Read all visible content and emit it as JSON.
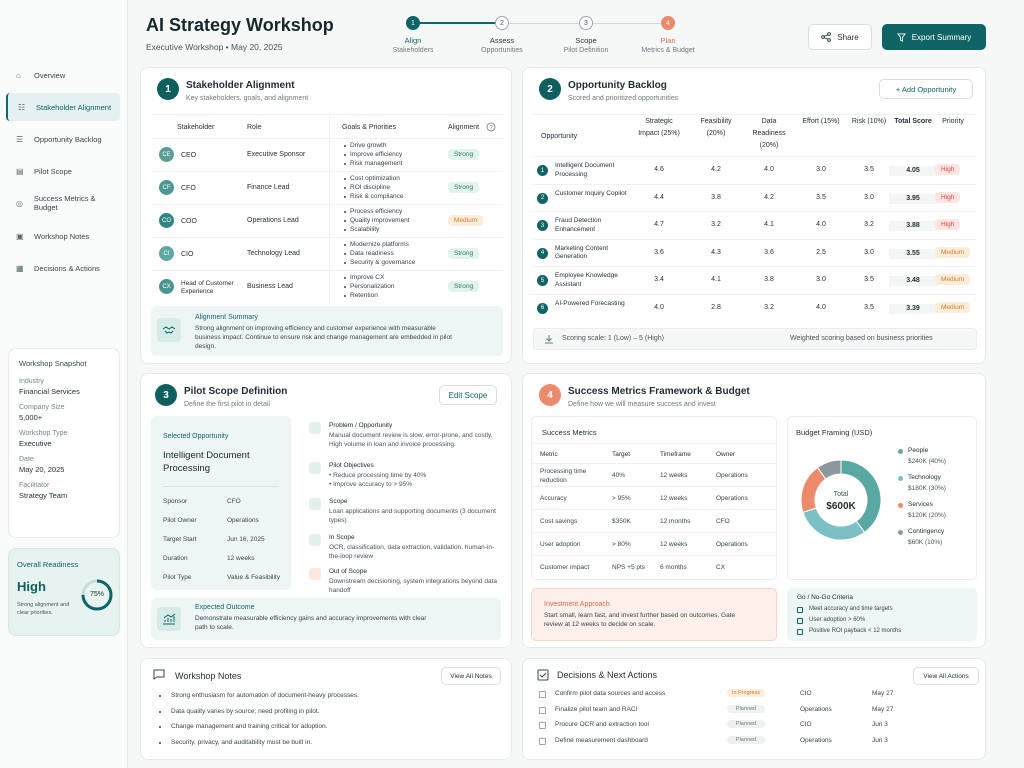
{
  "header": {
    "title": "AI Strategy Workshop",
    "subtitle": "Executive Workshop • May 20, 2025",
    "share": "Share",
    "export": "Export Summary"
  },
  "steps": [
    {
      "n": "1",
      "label": "Align",
      "sub": "Stakeholders"
    },
    {
      "n": "2",
      "label": "Assess",
      "sub": "Opportunities"
    },
    {
      "n": "3",
      "label": "Scope",
      "sub": "Pilot Definition"
    },
    {
      "n": "4",
      "label": "Plan",
      "sub": "Metrics & Budget"
    }
  ],
  "sidebar": {
    "items": [
      "Overview",
      "Stakeholder Alignment",
      "Opportunity Backlog",
      "Pilot Scope",
      "Success Metrics & Budget",
      "Workshop Notes",
      "Decisions & Actions"
    ],
    "snapshot": {
      "title": "Workshop Snapshot",
      "fields": [
        [
          "Industry",
          "Financial Services"
        ],
        [
          "Company Size",
          "5,000+"
        ],
        [
          "Workshop Type",
          "Executive"
        ],
        [
          "Date",
          "May 20, 2025"
        ],
        [
          "Facilitator",
          "Strategy Team"
        ]
      ]
    },
    "readiness": {
      "title": "Overall Readiness",
      "level": "High",
      "note": "Strong alignment and clear priorities.",
      "percent": "75%",
      "fraction": 0.75
    }
  },
  "stake": {
    "n": "1",
    "title": "Stakeholder Alignment",
    "sub": "Key stakeholders, goals, and alignment",
    "cols": [
      "Stakeholder",
      "Role",
      "Goals & Priorities",
      "Alignment"
    ],
    "rows": [
      {
        "ab": "CE",
        "name": "CEO",
        "role": "Executive Sponsor",
        "goals": [
          "Drive growth",
          "Improve efficiency",
          "Risk management"
        ],
        "align": "Strong",
        "cls": "strong",
        "color": "#5b9d96"
      },
      {
        "ab": "CF",
        "name": "CFO",
        "role": "Finance Lead",
        "goals": [
          "Cost optimization",
          "ROI discipline",
          "Risk & compliance"
        ],
        "align": "Strong",
        "cls": "strong",
        "color": "#4d9894"
      },
      {
        "ab": "CO",
        "name": "COO",
        "role": "Operations Lead",
        "goals": [
          "Process efficiency",
          "Quality improvement",
          "Scalability"
        ],
        "align": "Medium",
        "cls": "medium",
        "color": "#2f8682"
      },
      {
        "ab": "CI",
        "name": "CIO",
        "role": "Technology Lead",
        "goals": [
          "Modernize platforms",
          "Data readiness",
          "Security & governance"
        ],
        "align": "Strong",
        "cls": "strong",
        "color": "#5ea8a3"
      },
      {
        "ab": "CX",
        "name": "Head of Customer Experience",
        "role": "Business Lead",
        "goals": [
          "Improve CX",
          "Personalization",
          "Retention"
        ],
        "align": "Strong",
        "cls": "strong",
        "color": "#49958f"
      }
    ],
    "summary_title": "Alignment Summary",
    "summary_text": "Strong alignment on improving efficiency and customer experience with measurable business impact. Continue to ensure risk and change management are embedded in pilot design."
  },
  "opp": {
    "n": "2",
    "title": "Opportunity Backlog",
    "sub": "Scored and prioritized opportunities",
    "add": "+ Add Opportunity",
    "cols": [
      "Opportunity",
      "Strategic Impact (25%)",
      "Feasibility (20%)",
      "Data Readiness (20%)",
      "Effort (15%)",
      "Risk (10%)",
      "Total Score",
      "Priority"
    ],
    "rows": [
      {
        "n": "1",
        "name": "Intelligent Document Processing",
        "v": [
          "4.6",
          "4.2",
          "4.0",
          "3.0",
          "3.5"
        ],
        "total": "4.05",
        "pri": "High",
        "cls": "high"
      },
      {
        "n": "2",
        "name": "Customer Inquiry Copilot",
        "v": [
          "4.4",
          "3.8",
          "4.2",
          "3.5",
          "3.0"
        ],
        "total": "3.95",
        "pri": "High",
        "cls": "high"
      },
      {
        "n": "3",
        "name": "Fraud Detection Enhancement",
        "v": [
          "4.7",
          "3.2",
          "4.1",
          "4.0",
          "3.2"
        ],
        "total": "3.88",
        "pri": "High",
        "cls": "high"
      },
      {
        "n": "4",
        "name": "Marketing Content Generation",
        "v": [
          "3.6",
          "4.3",
          "3.6",
          "2.5",
          "3.0"
        ],
        "total": "3.55",
        "pri": "Medium",
        "cls": "medium"
      },
      {
        "n": "5",
        "name": "Employee Knowledge Assistant",
        "v": [
          "3.4",
          "4.1",
          "3.8",
          "3.0",
          "3.5"
        ],
        "total": "3.48",
        "pri": "Medium",
        "cls": "medium"
      },
      {
        "n": "6",
        "name": "AI-Powered Forecasting",
        "v": [
          "4.0",
          "2.8",
          "3.2",
          "4.0",
          "3.5"
        ],
        "total": "3.39",
        "pri": "Medium",
        "cls": "medium"
      }
    ],
    "scale": "Scoring scale: 1 (Low) – 5 (High)",
    "weighted": "Weighted scoring based on business priorities"
  },
  "pilot": {
    "n": "3",
    "title": "Pilot Scope Definition",
    "sub": "Define the first pilot in detail",
    "edit": "Edit Scope",
    "sel_label": "Selected Opportunity",
    "sel_name": "Intelligent Document Processing",
    "fields": [
      [
        "Sponsor",
        "CFO"
      ],
      [
        "Pilot Owner",
        "Operations"
      ],
      [
        "Target Start",
        "Jun 16, 2025"
      ],
      [
        "Duration",
        "12 weeks"
      ],
      [
        "Pilot Type",
        "Value & Feasibility"
      ]
    ],
    "items": [
      {
        "t": "Problem / Opportunity",
        "d": "Manual document review is slow, error-prone, and costly. High volume in loan and invoice processing."
      },
      {
        "t": "Pilot Objectives",
        "d": "• Reduce processing time by 40%\n• Improve accuracy to > 95%"
      },
      {
        "t": "Scope",
        "d": "Loan applications and supporting documents (3 document types)"
      },
      {
        "t": "In Scope",
        "d": "OCR, classification, data extraction, validation, human-in-the-loop review"
      },
      {
        "t": "Out of Scope",
        "d": "Downstream decisioning, system integrations beyond data handoff"
      }
    ],
    "outcome_title": "Expected Outcome",
    "outcome_text": "Demonstrate measurable efficiency gains and accuracy improvements with clear path to scale."
  },
  "metrics": {
    "n": "4",
    "title": "Success Metrics Framework & Budget",
    "sub": "Define how we will measure success and invest",
    "sm_title": "Success Metrics",
    "cols": [
      "Metric",
      "Target",
      "Timeframe",
      "Owner"
    ],
    "rows": [
      [
        "Processing time reduction",
        "40%",
        "12 weeks",
        "Operations"
      ],
      [
        "Accuracy",
        "> 95%",
        "12 weeks",
        "Operations"
      ],
      [
        "Cost savings",
        "$350K",
        "12 months",
        "CFO"
      ],
      [
        "User adoption",
        "> 80%",
        "12 weeks",
        "Operations"
      ],
      [
        "Customer impact",
        "NPS +5 pts",
        "6 months",
        "CX"
      ]
    ],
    "budget_title": "Budget Framing (USD)",
    "total_label": "Total",
    "total": "$600K",
    "budget": [
      {
        "name": "People",
        "amt": "$240K (40%)",
        "pct": 40,
        "color": "#5aa8a4"
      },
      {
        "name": "Technology",
        "amt": "$180K (30%)",
        "pct": 30,
        "color": "#7cc0c6"
      },
      {
        "name": "Services",
        "amt": "$120K (20%)",
        "pct": 20,
        "color": "#ec8a6c"
      },
      {
        "name": "Contingency",
        "amt": "$60K (10%)",
        "pct": 10,
        "color": "#8d989d"
      }
    ],
    "inv_title": "Investment Approach",
    "inv_text": "Start small, learn fast, and invest further based on outcomes. Gate review at 12 weeks to decide on scale.",
    "go_title": "Go / No-Go Criteria",
    "go": [
      "Meet accuracy and time targets",
      "User adoption > 60%",
      "Positive ROI payback < 12 months"
    ]
  },
  "notes": {
    "title": "Workshop Notes",
    "view": "View All Notes",
    "items": [
      "Strong enthusiasm for automation of document-heavy processes.",
      "Data quality varies by source; need profiling in pilot.",
      "Change management and training critical for adoption.",
      "Security, privacy, and auditability must be built in."
    ]
  },
  "decisions": {
    "title": "Decisions & Next Actions",
    "view": "View All Actions",
    "rows": [
      [
        "Confirm pilot data sources and access",
        "In Progress",
        "CIO",
        "May 27"
      ],
      [
        "Finalize pilot team and RACI",
        "Planned",
        "Operations",
        "May 27"
      ],
      [
        "Procure OCR and extraction tool",
        "Planned",
        "CIO",
        "Jun 3"
      ],
      [
        "Define measurement dashboard",
        "Planned",
        "Operations",
        "Jun 3"
      ]
    ]
  }
}
